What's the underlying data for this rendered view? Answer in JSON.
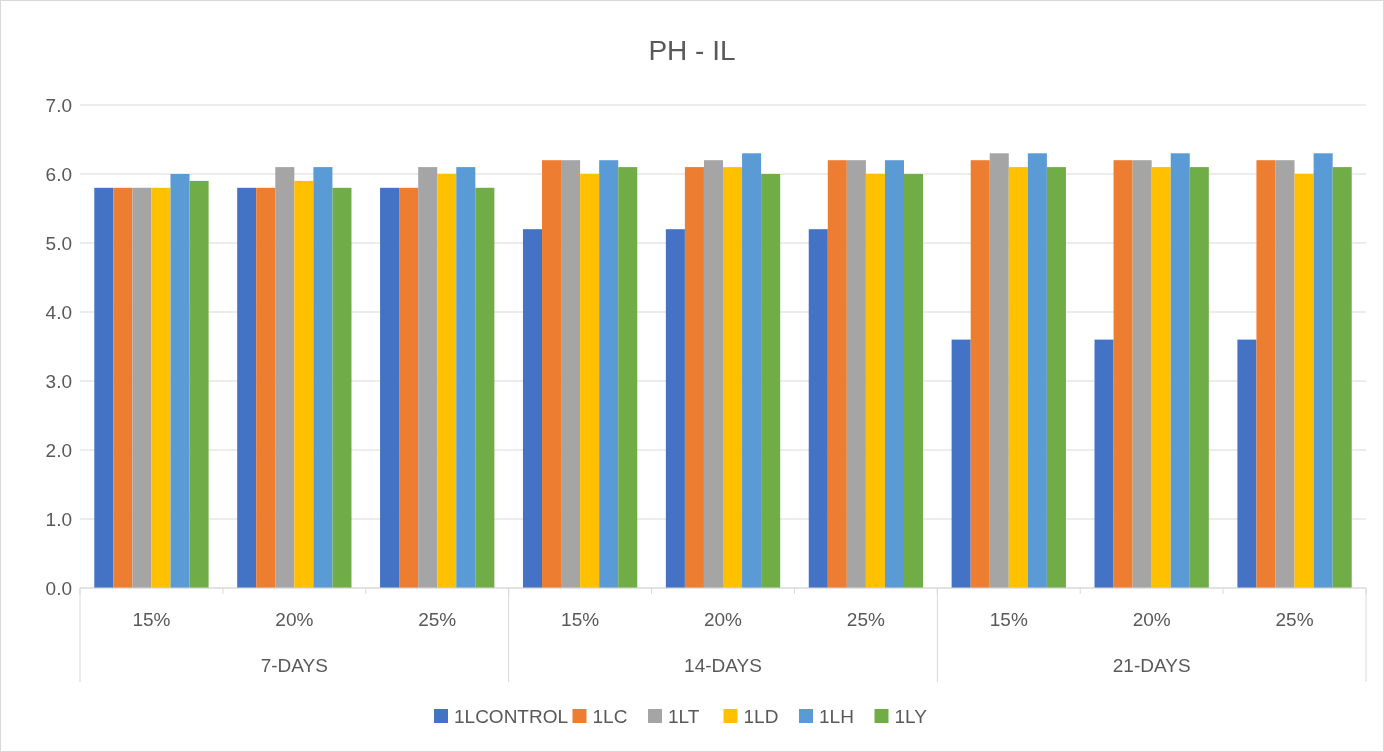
{
  "chart_data": {
    "type": "bar",
    "title": "PH - IL",
    "categories": [
      "15%",
      "20%",
      "25%",
      "15%",
      "20%",
      "25%",
      "15%",
      "20%",
      "25%"
    ],
    "annotations": [
      "7-DAYS",
      "14-DAYS",
      "21-DAYS"
    ],
    "series": [
      {
        "name": "1LCONTROL",
        "color": "#4472c4",
        "values": [
          5.8,
          5.8,
          5.8,
          5.2,
          5.2,
          5.2,
          3.6,
          3.6,
          3.6
        ]
      },
      {
        "name": "1LC",
        "color": "#ed7d31",
        "values": [
          5.8,
          5.8,
          5.8,
          6.2,
          6.1,
          6.2,
          6.2,
          6.2,
          6.2
        ]
      },
      {
        "name": "1LT",
        "color": "#a5a5a5",
        "values": [
          5.8,
          6.1,
          6.1,
          6.2,
          6.2,
          6.2,
          6.3,
          6.2,
          6.2
        ]
      },
      {
        "name": "1LD",
        "color": "#ffc000",
        "values": [
          5.8,
          5.9,
          6.0,
          6.0,
          6.1,
          6.0,
          6.1,
          6.1,
          6.0
        ]
      },
      {
        "name": "1LH",
        "color": "#5b9bd5",
        "values": [
          6.0,
          6.1,
          6.1,
          6.2,
          6.3,
          6.2,
          6.3,
          6.3,
          6.3
        ]
      },
      {
        "name": "1LY",
        "color": "#70ad47",
        "values": [
          5.9,
          5.8,
          5.8,
          6.1,
          6.0,
          6.0,
          6.1,
          6.1,
          6.1
        ]
      }
    ],
    "ylim": [
      0,
      7
    ],
    "yticks": [
      {
        "value": 0,
        "label": "0.0"
      },
      {
        "value": 1,
        "label": "1.0"
      },
      {
        "value": 2,
        "label": "2.0"
      },
      {
        "value": 3,
        "label": "3.0"
      },
      {
        "value": 4,
        "label": "4.0"
      },
      {
        "value": 5,
        "label": "5.0"
      },
      {
        "value": 6,
        "label": "6.0"
      },
      {
        "value": 7,
        "label": "7.0"
      }
    ],
    "grid": "y",
    "legend": "bottom"
  }
}
